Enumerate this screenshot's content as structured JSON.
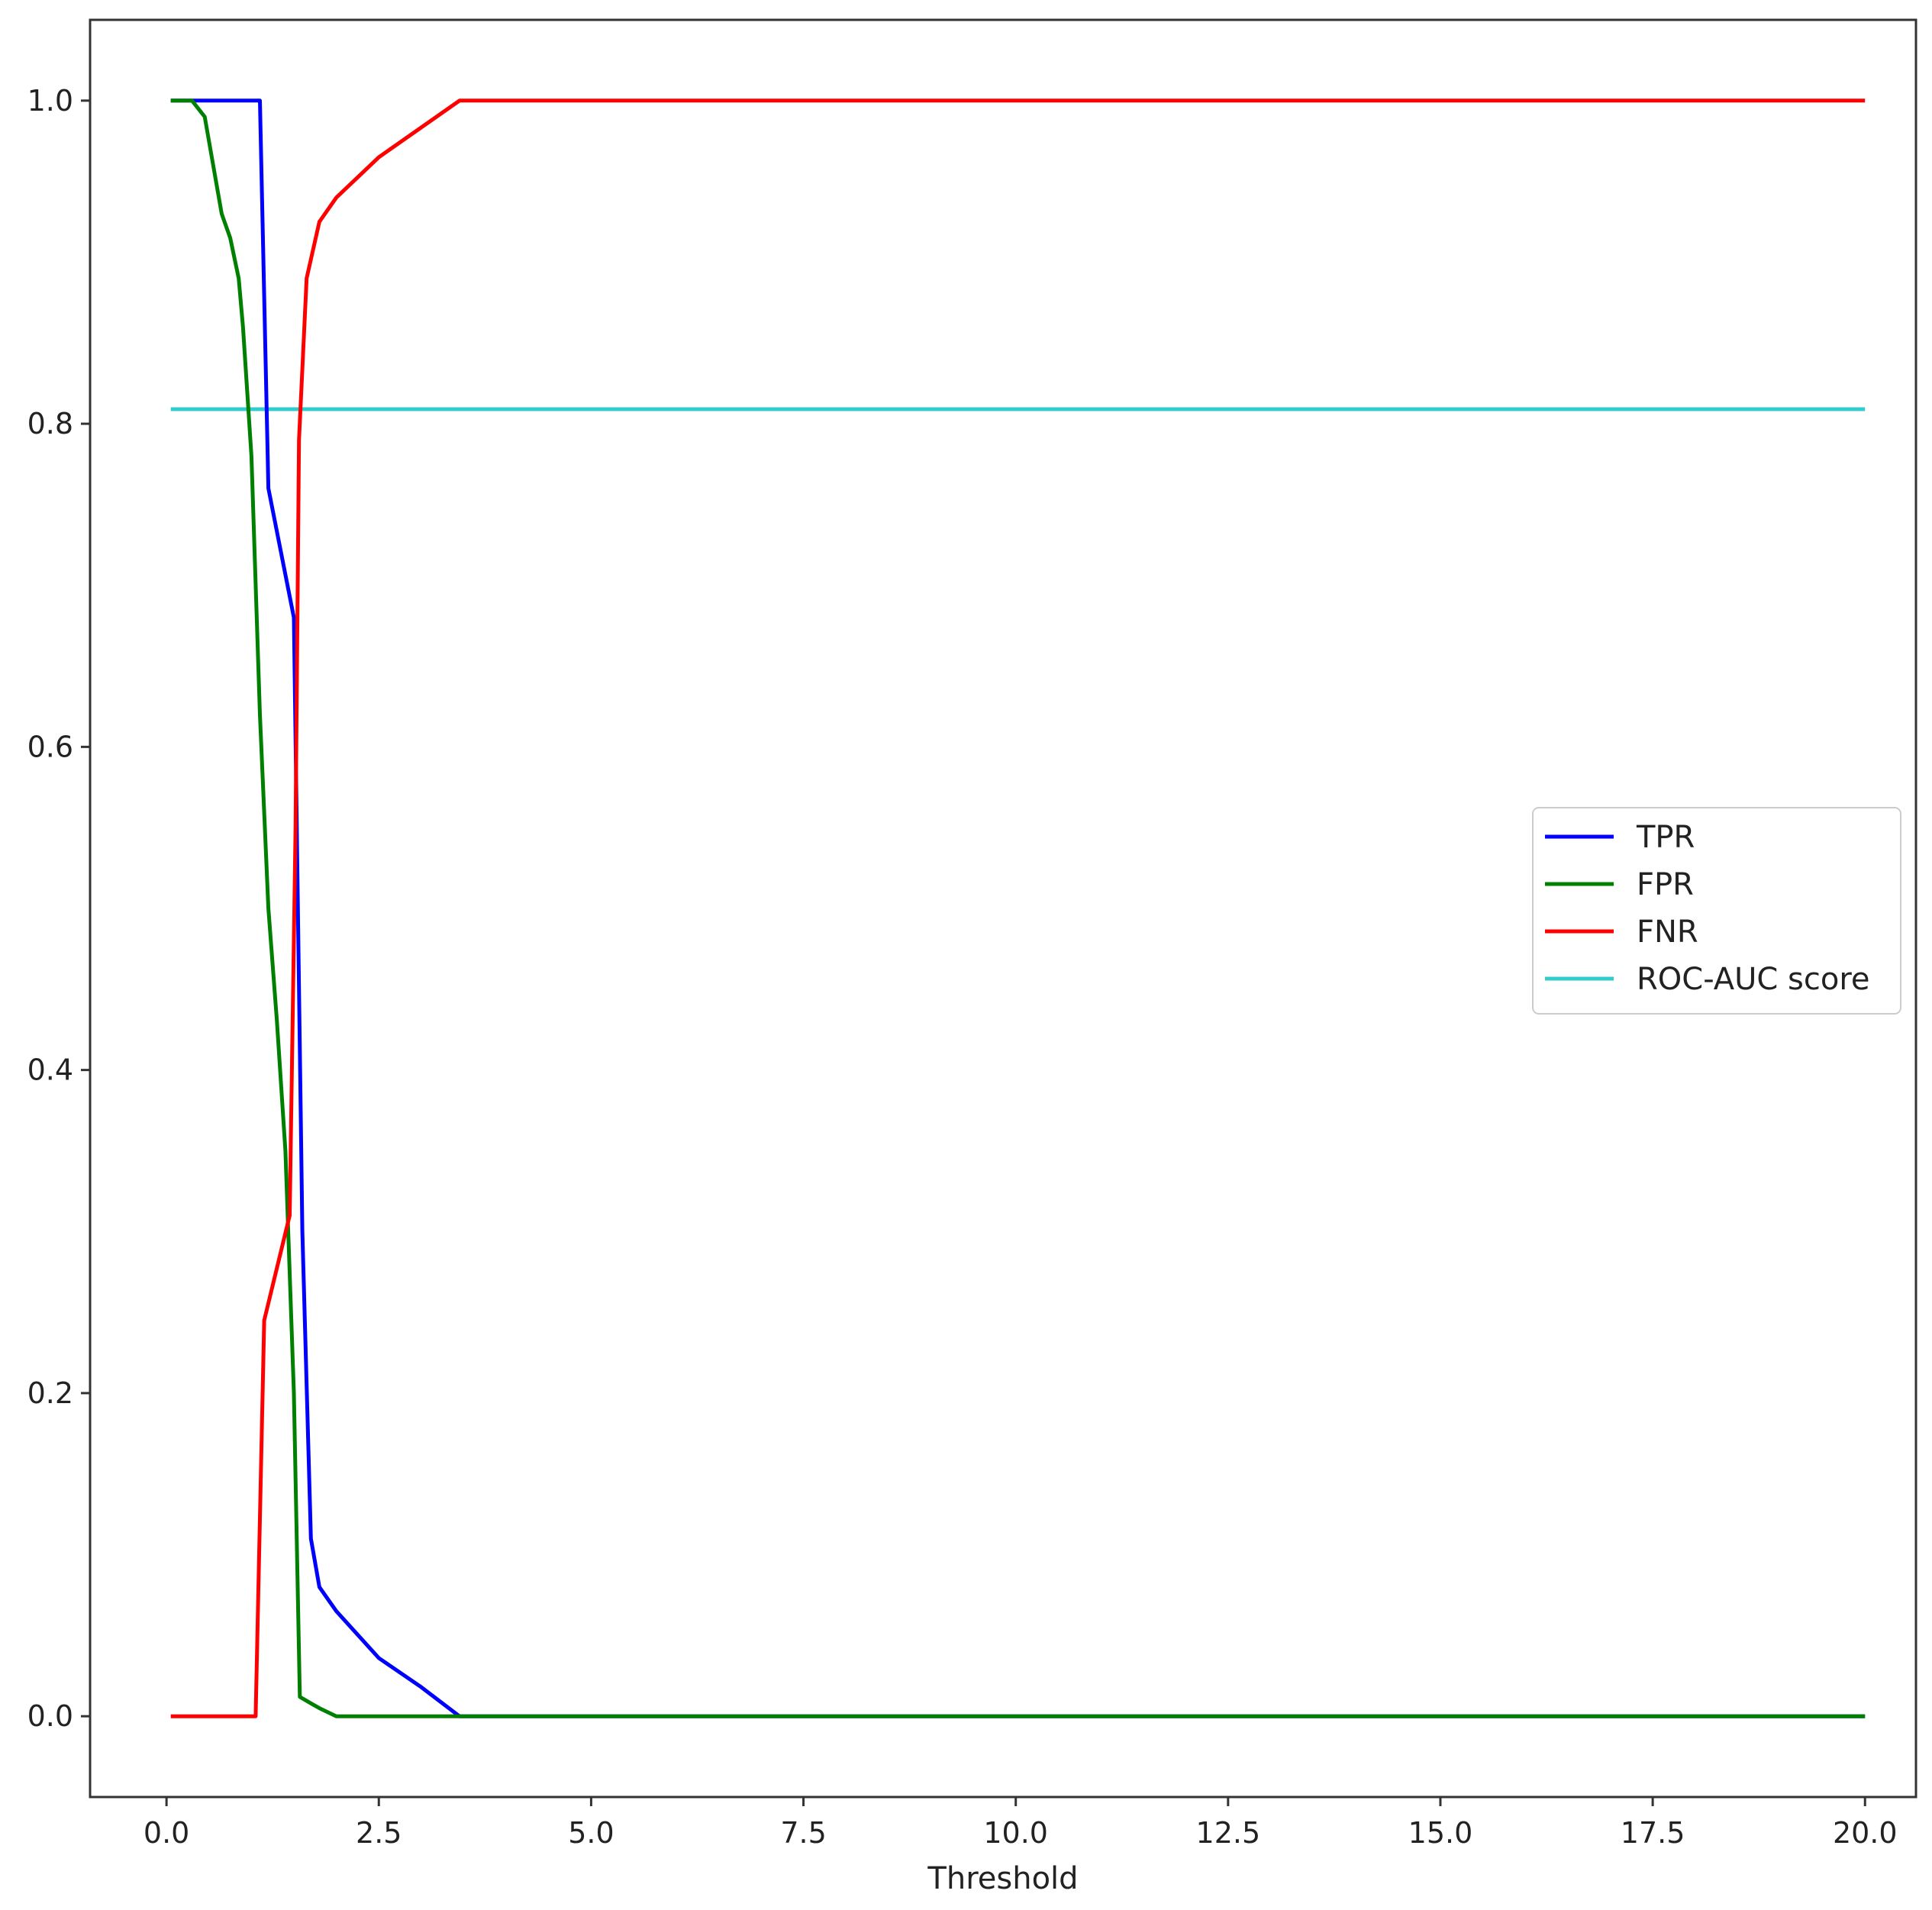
{
  "chart_data": {
    "type": "line",
    "title": "",
    "xlabel": "Threshold",
    "ylabel": "",
    "xlim": [
      -0.9,
      20.6
    ],
    "ylim": [
      -0.05,
      1.05
    ],
    "xticks": [
      0.0,
      2.5,
      5.0,
      7.5,
      10.0,
      12.5,
      15.0,
      17.5,
      20.0
    ],
    "xtick_labels": [
      "0.0",
      "2.5",
      "5.0",
      "7.5",
      "10.0",
      "12.5",
      "15.0",
      "17.5",
      "20.0"
    ],
    "yticks": [
      0.0,
      0.2,
      0.4,
      0.6,
      0.8,
      1.0
    ],
    "ytick_labels": [
      "0.0",
      "0.2",
      "0.4",
      "0.6",
      "0.8",
      "1.0"
    ],
    "grid": false,
    "legend_position": "center-right",
    "series": [
      {
        "name": "TPR",
        "color": "#0000ff",
        "points": [
          [
            0.05,
            1.0
          ],
          [
            1.1,
            1.0
          ],
          [
            1.2,
            0.76
          ],
          [
            1.5,
            0.68
          ],
          [
            1.6,
            0.3
          ],
          [
            1.7,
            0.11
          ],
          [
            1.8,
            0.08
          ],
          [
            2.0,
            0.065
          ],
          [
            2.5,
            0.036
          ],
          [
            3.0,
            0.018
          ],
          [
            3.45,
            0.0
          ],
          [
            20.0,
            0.0
          ]
        ]
      },
      {
        "name": "FPR",
        "color": "#008000",
        "points": [
          [
            0.05,
            1.0
          ],
          [
            0.3,
            1.0
          ],
          [
            0.45,
            0.99
          ],
          [
            0.55,
            0.96
          ],
          [
            0.65,
            0.93
          ],
          [
            0.75,
            0.915
          ],
          [
            0.85,
            0.89
          ],
          [
            0.9,
            0.86
          ],
          [
            1.0,
            0.78
          ],
          [
            1.1,
            0.62
          ],
          [
            1.2,
            0.5
          ],
          [
            1.3,
            0.43
          ],
          [
            1.4,
            0.35
          ],
          [
            1.5,
            0.2
          ],
          [
            1.57,
            0.012
          ],
          [
            1.7,
            0.008
          ],
          [
            1.8,
            0.005
          ],
          [
            2.0,
            0.0
          ],
          [
            20.0,
            0.0
          ]
        ]
      },
      {
        "name": "FNR",
        "color": "#ff0000",
        "points": [
          [
            0.05,
            0.0
          ],
          [
            1.05,
            0.0
          ],
          [
            1.15,
            0.245
          ],
          [
            1.45,
            0.31
          ],
          [
            1.52,
            0.55
          ],
          [
            1.56,
            0.79
          ],
          [
            1.65,
            0.89
          ],
          [
            1.8,
            0.925
          ],
          [
            2.0,
            0.94
          ],
          [
            2.5,
            0.965
          ],
          [
            3.45,
            1.0
          ],
          [
            20.0,
            1.0
          ]
        ]
      },
      {
        "name": "ROC-AUC score",
        "color": "#33cccc",
        "points": [
          [
            0.05,
            0.809
          ],
          [
            20.0,
            0.809
          ]
        ]
      }
    ]
  }
}
